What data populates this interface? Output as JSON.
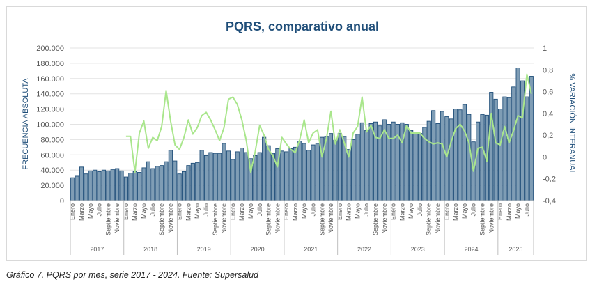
{
  "chart_data": {
    "type": "bar+line",
    "title": "PQRS, comparativo anual",
    "ylabel": "FRECUENCIA ABSOLUTA",
    "y2label": "% VARIACIÓN INTERANUAL",
    "ylim": [
      0,
      200000
    ],
    "y2lim": [
      -0.4,
      1
    ],
    "yticks": [
      "0",
      "20.000",
      "40.000",
      "60.000",
      "80.000",
      "100.000",
      "120.000",
      "140.000",
      "160.000",
      "180.000",
      "200.000"
    ],
    "y2ticks": [
      "-0,4",
      "-0,2",
      "0",
      "0,2",
      "0,4",
      "0,6",
      "0,8",
      "1"
    ],
    "month_labels": [
      "Enero",
      "Marzo",
      "Mayo",
      "Julio",
      "Septiembre",
      "Noviembre"
    ],
    "years": [
      "2017",
      "2018",
      "2019",
      "2020",
      "2021",
      "2022",
      "2023",
      "2024",
      "2025"
    ],
    "bar_color": "#7f9db5",
    "bar_edge_color": "#1f4e79",
    "line_color": "#a9e68c",
    "grid": true,
    "series": [
      {
        "type": "bar",
        "values": [
          30000,
          32000,
          44000,
          35000,
          39000,
          40000,
          38000,
          40000,
          39000,
          41000,
          42000,
          39000,
          31000,
          36000,
          38000,
          37000,
          43000,
          51000,
          42000,
          45000,
          46000,
          51000,
          66000,
          52000,
          35000,
          38000,
          46000,
          49000,
          50000,
          66000,
          59000,
          63000,
          62000,
          62000,
          75000,
          65000,
          54000,
          64000,
          69000,
          63000,
          55000,
          59000,
          63000,
          83000,
          72000,
          62000,
          68000,
          65000,
          64000,
          68000,
          70000,
          78000,
          75000,
          66000,
          73000,
          75000,
          83000,
          84000,
          88000,
          79000,
          88000,
          84000,
          67000,
          80000,
          87000,
          102000,
          92000,
          101000,
          103000,
          98000,
          106000,
          100000,
          103000,
          100000,
          102000,
          100000,
          92000,
          88000,
          88000,
          96000,
          104000,
          118000,
          101000,
          117000,
          110000,
          107000,
          120000,
          119000,
          126000,
          113000,
          77000,
          103000,
          113000,
          112000,
          142000,
          133000,
          120000,
          136000,
          135000,
          149000,
          174000,
          157000,
          136000,
          163000
        ]
      },
      {
        "type": "line",
        "values": [
          null,
          null,
          null,
          null,
          null,
          null,
          null,
          null,
          null,
          null,
          null,
          null,
          0.19,
          0.19,
          -0.14,
          0.22,
          0.33,
          0.08,
          0.18,
          0.15,
          0.28,
          0.61,
          0.33,
          0.11,
          0.07,
          0.18,
          0.34,
          0.21,
          0.27,
          0.38,
          0.41,
          0.34,
          0.25,
          0.15,
          0.27,
          0.53,
          0.55,
          0.48,
          0.34,
          0.15,
          -0.14,
          0.05,
          0.29,
          0.2,
          0.07,
          0.01,
          -0.09,
          0.18,
          0.12,
          0.07,
          0.04,
          0.16,
          0.34,
          0.13,
          0.22,
          0.25,
          0.0,
          0.17,
          0.42,
          0.12,
          0.25,
          0.13,
          0.0,
          0.22,
          0.28,
          0.55,
          0.23,
          0.29,
          0.18,
          0.17,
          0.25,
          0.17,
          0.17,
          0.2,
          0.13,
          0.29,
          0.22,
          0.22,
          0.22,
          0.17,
          0.14,
          0.12,
          0.13,
          0.12,
          0.0,
          0.14,
          0.26,
          0.3,
          0.24,
          0.13,
          -0.13,
          0.08,
          0.09,
          -0.04,
          0.4,
          0.13,
          0.11,
          0.28,
          0.13,
          0.24,
          0.38,
          0.36,
          0.76,
          0.58
        ]
      }
    ]
  },
  "caption": "Gráfico 7.  PQRS por mes, serie 2017 - 2024.  Fuente: Supersalud"
}
